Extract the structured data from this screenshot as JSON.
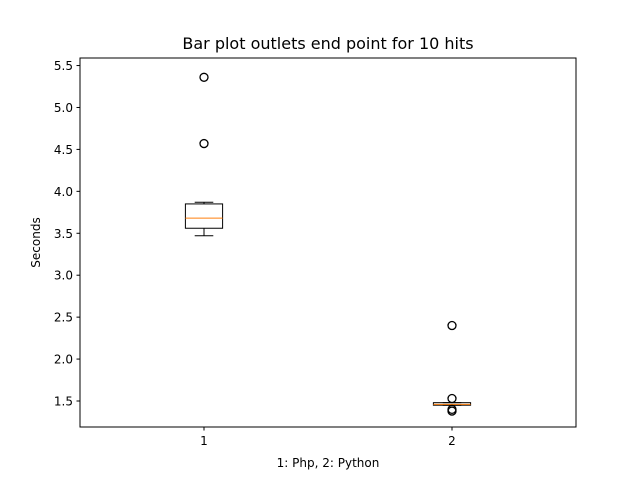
{
  "chart_data": {
    "type": "box",
    "title": "Bar plot outlets end point for 10 hits",
    "xlabel": "1: Php, 2: Python",
    "ylabel": "Seconds",
    "ylim": [
      1.19,
      5.59
    ],
    "xlim": [
      0.5,
      2.5
    ],
    "yticks": [
      "1.5",
      "2.0",
      "2.5",
      "3.0",
      "3.5",
      "4.0",
      "4.5",
      "5.0",
      "5.5"
    ],
    "categories": [
      "1",
      "2"
    ],
    "boxes": [
      {
        "category": "1",
        "whisker_low": 3.47,
        "q1": 3.56,
        "median": 3.68,
        "q3": 3.85,
        "whisker_high": 3.87,
        "outliers": [
          4.57,
          5.36
        ]
      },
      {
        "category": "2",
        "whisker_low": 1.45,
        "q1": 1.45,
        "median": 1.46,
        "q3": 1.48,
        "whisker_high": 1.48,
        "outliers": [
          1.38,
          1.4,
          1.53,
          2.4
        ]
      }
    ],
    "grid": false,
    "colors": {
      "box": "#000000",
      "median": "#ff7f0e",
      "outlier": "#000000",
      "axes": "#000000",
      "background": "#ffffff"
    }
  }
}
